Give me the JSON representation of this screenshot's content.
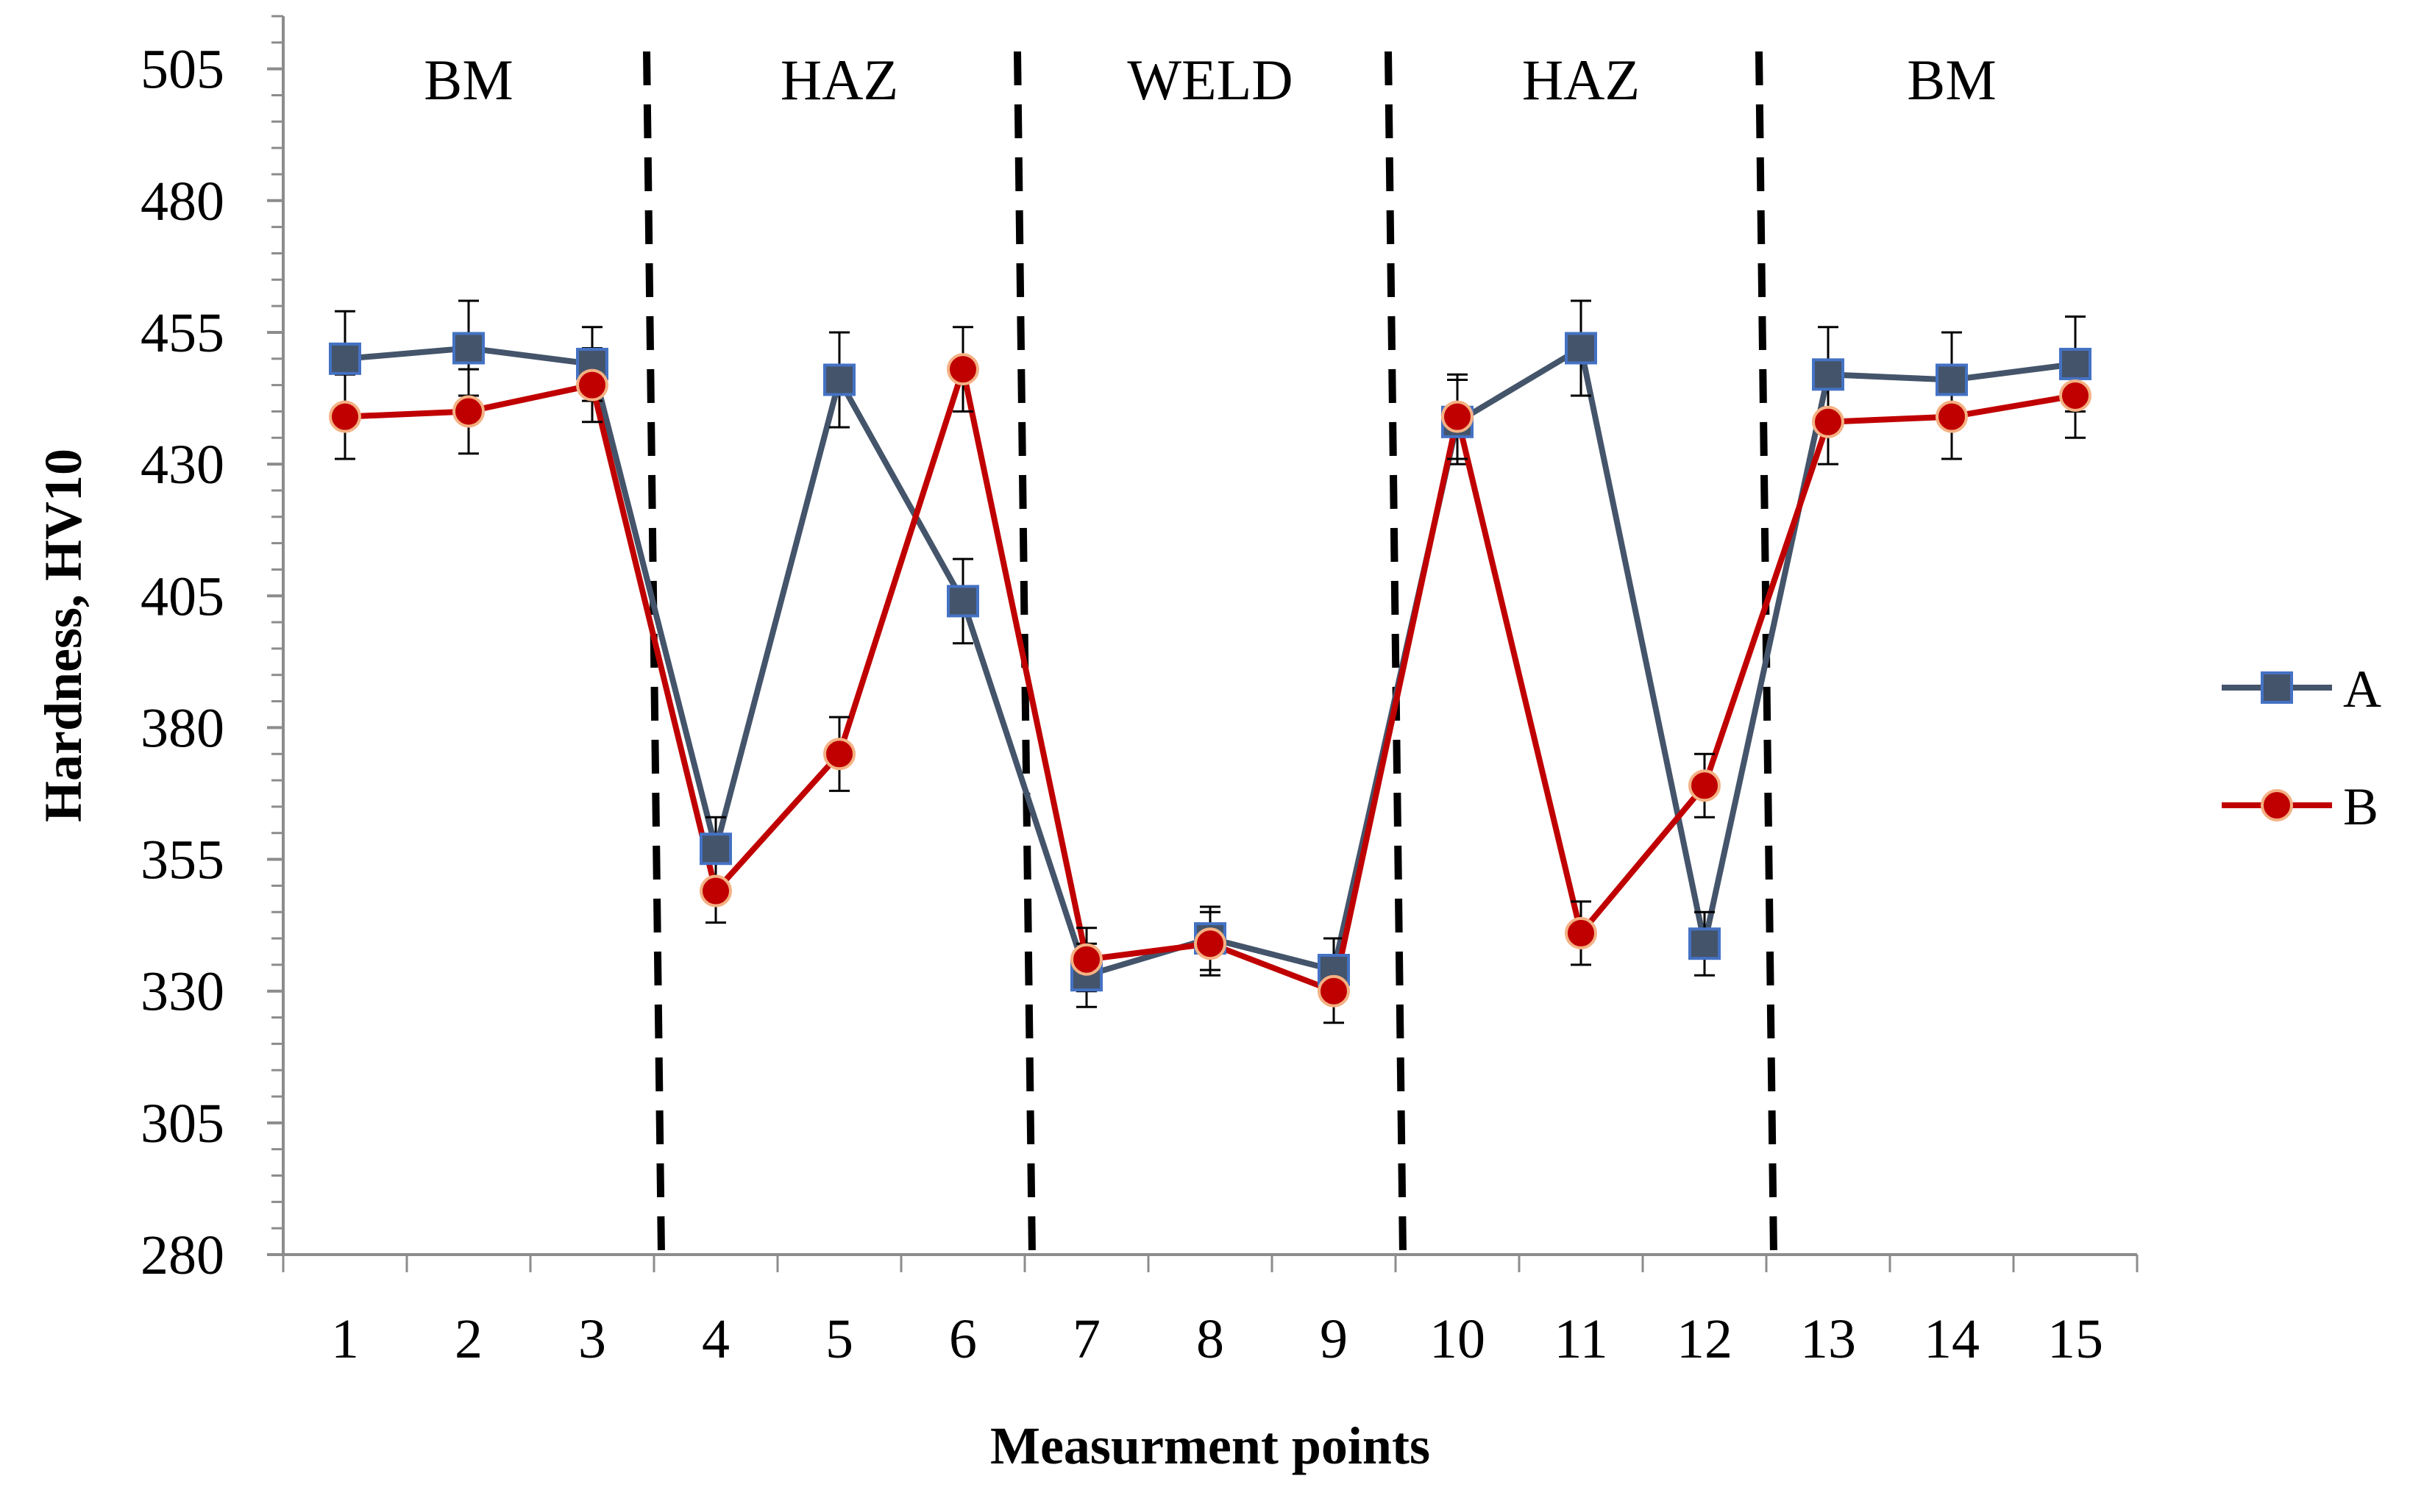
{
  "chart_data": {
    "type": "line",
    "title": "",
    "xlabel": "Measurment points",
    "ylabel": "Hardness, HV10",
    "ylim": [
      280,
      515
    ],
    "yticks": [
      280,
      305,
      330,
      355,
      380,
      405,
      430,
      455,
      480,
      505
    ],
    "categories": [
      "1",
      "2",
      "3",
      "4",
      "5",
      "6",
      "7",
      "8",
      "9",
      "10",
      "11",
      "12",
      "13",
      "14",
      "15"
    ],
    "series": [
      {
        "name": "A",
        "color": "#44546A",
        "marker": "square",
        "marker_fill": "#44546A",
        "marker_edge": "#4472C4",
        "values": [
          450,
          452,
          449,
          357,
          446,
          404,
          333,
          340,
          334,
          438,
          452,
          339,
          447,
          446,
          449
        ],
        "errors": [
          9,
          9,
          7,
          6,
          9,
          8,
          6,
          6,
          6,
          8,
          9,
          6,
          9,
          9,
          9
        ]
      },
      {
        "name": "B",
        "color": "#C00000",
        "marker": "circle",
        "marker_fill": "#C00000",
        "marker_edge": "#F4B183",
        "values": [
          439,
          440,
          445,
          349,
          375,
          448,
          336,
          339,
          330,
          439,
          341,
          369,
          438,
          439,
          443
        ],
        "errors": [
          8,
          8,
          7,
          6,
          7,
          8,
          6,
          6,
          6,
          8,
          6,
          6,
          8,
          8,
          8
        ]
      }
    ],
    "regions": [
      {
        "label": "BM",
        "from": 0.5,
        "to": 3.5
      },
      {
        "label": "HAZ",
        "from": 3.5,
        "to": 6.5
      },
      {
        "label": "WELD",
        "from": 6.5,
        "to": 9.5
      },
      {
        "label": "HAZ",
        "from": 9.5,
        "to": 12.5
      },
      {
        "label": "BM",
        "from": 12.5,
        "to": 15.5
      }
    ],
    "dividers": [
      3.5,
      6.5,
      9.5,
      12.5
    ],
    "grid": false,
    "legend_position": "right"
  }
}
